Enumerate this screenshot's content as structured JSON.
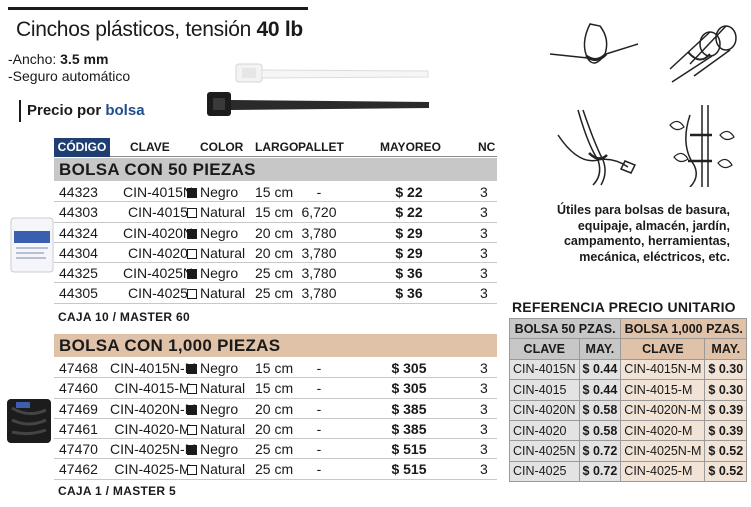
{
  "header": {
    "title_prefix": "Cinchos plásticos, tensión ",
    "title_bold": "40 lb",
    "spec_width_label": "-Ancho: ",
    "spec_width_value": "3.5 mm",
    "spec_lock": "-Seguro automático",
    "price_prefix": "Precio por ",
    "price_unit": "bolsa"
  },
  "columns": {
    "code": "CÓDIGO",
    "clave": "CLAVE",
    "color": "COLOR",
    "largo": "LARGO",
    "pallet": "PALLET",
    "mayoreo": "MAYOREO",
    "nc": "NC"
  },
  "section1": {
    "title": "BOLSA CON 50 PIEZAS",
    "footer": "CAJA 10 / MASTER 60",
    "rows": [
      {
        "code": "44323",
        "clave": "CIN-4015N",
        "color": "Negro",
        "swatch": "negro",
        "largo": "15 cm",
        "pallet": "-",
        "mayoreo": "$ 22",
        "nc": "3"
      },
      {
        "code": "44303",
        "clave": "CIN-4015",
        "color": "Natural",
        "swatch": "natural",
        "largo": "15 cm",
        "pallet": "6,720",
        "mayoreo": "$ 22",
        "nc": "3"
      },
      {
        "code": "44324",
        "clave": "CIN-4020N",
        "color": "Negro",
        "swatch": "negro",
        "largo": "20 cm",
        "pallet": "3,780",
        "mayoreo": "$ 29",
        "nc": "3"
      },
      {
        "code": "44304",
        "clave": "CIN-4020",
        "color": "Natural",
        "swatch": "natural",
        "largo": "20 cm",
        "pallet": "3,780",
        "mayoreo": "$ 29",
        "nc": "3"
      },
      {
        "code": "44325",
        "clave": "CIN-4025N",
        "color": "Negro",
        "swatch": "negro",
        "largo": "25 cm",
        "pallet": "3,780",
        "mayoreo": "$ 36",
        "nc": "3"
      },
      {
        "code": "44305",
        "clave": "CIN-4025",
        "color": "Natural",
        "swatch": "natural",
        "largo": "25 cm",
        "pallet": "3,780",
        "mayoreo": "$ 36",
        "nc": "3"
      }
    ]
  },
  "section2": {
    "title": "BOLSA CON 1,000 PIEZAS",
    "footer": "CAJA 1 / MASTER 5",
    "rows": [
      {
        "code": "47468",
        "clave": "CIN-4015N-M",
        "color": "Negro",
        "swatch": "negro",
        "largo": "15 cm",
        "pallet": "-",
        "mayoreo": "$ 305",
        "nc": "3"
      },
      {
        "code": "47460",
        "clave": "CIN-4015-M",
        "color": "Natural",
        "swatch": "natural",
        "largo": "15 cm",
        "pallet": "-",
        "mayoreo": "$ 305",
        "nc": "3"
      },
      {
        "code": "47469",
        "clave": "CIN-4020N-M",
        "color": "Negro",
        "swatch": "negro",
        "largo": "20 cm",
        "pallet": "-",
        "mayoreo": "$ 385",
        "nc": "3"
      },
      {
        "code": "47461",
        "clave": "CIN-4020-M",
        "color": "Natural",
        "swatch": "natural",
        "largo": "20 cm",
        "pallet": "-",
        "mayoreo": "$ 385",
        "nc": "3"
      },
      {
        "code": "47470",
        "clave": "CIN-4025N-M",
        "color": "Negro",
        "swatch": "negro",
        "largo": "25 cm",
        "pallet": "-",
        "mayoreo": "$ 515",
        "nc": "3"
      },
      {
        "code": "47462",
        "clave": "CIN-4025-M",
        "color": "Natural",
        "swatch": "natural",
        "largo": "25 cm",
        "pallet": "-",
        "mayoreo": "$ 515",
        "nc": "3"
      }
    ]
  },
  "uses": {
    "line1": "Útiles para bolsas de basura,",
    "line2": "equipaje, almacén, jardín,",
    "line3": "campamento, herramientas,",
    "line4": "mecánica, eléctricos, etc."
  },
  "reference": {
    "title": "REFERENCIA PRECIO UNITARIO",
    "group1": "BOLSA 50 PZAS.",
    "group2": "BOLSA 1,000 PZAS.",
    "clave": "CLAVE",
    "may": "MAY.",
    "rows": [
      {
        "c1": "CIN-4015N",
        "p1": "$ 0.44",
        "c2": "CIN-4015N-M",
        "p2": "$ 0.30"
      },
      {
        "c1": "CIN-4015",
        "p1": "$ 0.44",
        "c2": "CIN-4015-M",
        "p2": "$ 0.30"
      },
      {
        "c1": "CIN-4020N",
        "p1": "$ 0.58",
        "c2": "CIN-4020N-M",
        "p2": "$ 0.39"
      },
      {
        "c1": "CIN-4020",
        "p1": "$ 0.58",
        "c2": "CIN-4020-M",
        "p2": "$ 0.39"
      },
      {
        "c1": "CIN-4025N",
        "p1": "$ 0.72",
        "c2": "CIN-4025N-M",
        "p2": "$ 0.52"
      },
      {
        "c1": "CIN-4025",
        "p1": "$ 0.72",
        "c2": "CIN-4025-M",
        "p2": "$ 0.52"
      }
    ]
  },
  "colors": {
    "header_blue": "#1f3f73",
    "section1_bg": "#c7c7c7",
    "section2_bg": "#e0c2a8",
    "accent_blue": "#1f4e8c"
  }
}
